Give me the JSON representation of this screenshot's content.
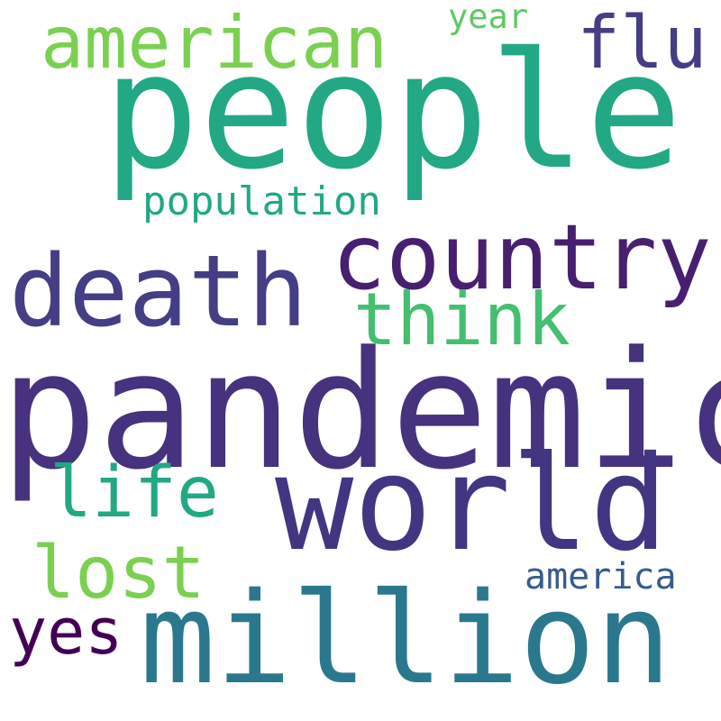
{
  "words": [
    {
      "key": "people",
      "text": "people",
      "color": "#22a884"
    },
    {
      "key": "pandemic",
      "text": "pandemic",
      "color": "#46327e"
    },
    {
      "key": "world",
      "text": "world",
      "color": "#433582"
    },
    {
      "key": "million",
      "text": "million",
      "color": "#2a788e"
    },
    {
      "key": "death",
      "text": "death",
      "color": "#433e85"
    },
    {
      "key": "country",
      "text": "country",
      "color": "#481f70"
    },
    {
      "key": "american",
      "text": "american",
      "color": "#7ad151"
    },
    {
      "key": "flu",
      "text": "flu",
      "color": "#433e85"
    },
    {
      "key": "think",
      "text": "think",
      "color": "#44bf70"
    },
    {
      "key": "life",
      "text": "life",
      "color": "#22a884"
    },
    {
      "key": "lost",
      "text": "lost",
      "color": "#7ad151"
    },
    {
      "key": "yes",
      "text": "yes",
      "color": "#440154"
    },
    {
      "key": "population",
      "text": "population",
      "color": "#22a884"
    },
    {
      "key": "america",
      "text": "america",
      "color": "#365c8d"
    },
    {
      "key": "year",
      "text": "year",
      "color": "#5ec962"
    }
  ]
}
